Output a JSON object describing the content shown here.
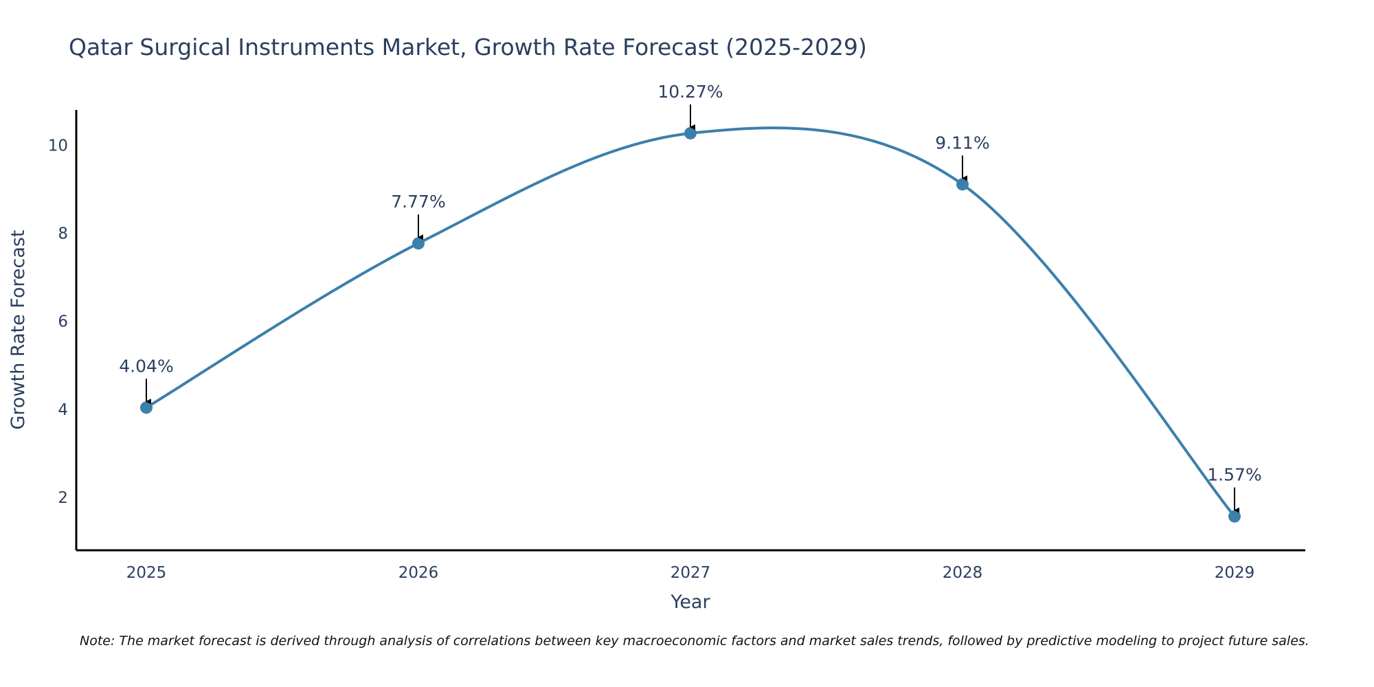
{
  "chart_data": {
    "type": "line",
    "title": "Qatar Surgical Instruments Market, Growth Rate Forecast (2025-2029)",
    "xlabel": "Year",
    "ylabel": "Growth Rate Forecast",
    "categories": [
      "2025",
      "2026",
      "2027",
      "2028",
      "2029"
    ],
    "series": [
      {
        "name": "Growth Rate Forecast",
        "values": [
          4.04,
          7.77,
          10.27,
          9.11,
          1.57
        ],
        "labels": [
          "4.04%",
          "7.77%",
          "10.27%",
          "9.11%",
          "1.57%"
        ]
      }
    ],
    "yticks": [
      2,
      4,
      6,
      8,
      10
    ],
    "ylim": [
      0.8,
      10.8
    ],
    "grid": false,
    "line_shape": "spline",
    "line_color": "#3c7fab",
    "marker_color": "#3c7fab",
    "arrow_color": "#000000",
    "note": "Note: The market forecast is derived through analysis of correlations between key macroeconomic factors and market sales trends, followed by predictive modeling to project future sales."
  }
}
